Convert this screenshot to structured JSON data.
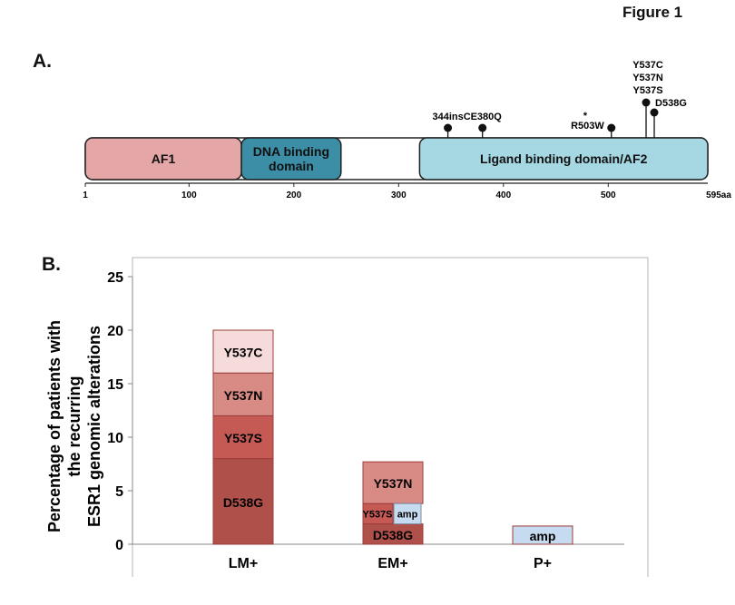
{
  "figure_title": "Figure 1",
  "panel_a_label": "A.",
  "panel_b_label": "B.",
  "protein": {
    "length": 595,
    "end_label": "595aa",
    "ticks": [
      {
        "pos": 1,
        "label": "1"
      },
      {
        "pos": 100,
        "label": "100"
      },
      {
        "pos": 200,
        "label": "200"
      },
      {
        "pos": 300,
        "label": "300"
      },
      {
        "pos": 400,
        "label": "400"
      },
      {
        "pos": 500,
        "label": "500"
      }
    ],
    "domains": [
      {
        "name": "AF1",
        "start": 1,
        "end": 150,
        "color": "#e4a6a6",
        "lines": [
          "AF1"
        ]
      },
      {
        "name": "DNA binding domain",
        "start": 150,
        "end": 245,
        "color": "#3b8ea5",
        "lines": [
          "DNA binding",
          "domain"
        ]
      },
      {
        "name": "Ligand binding domain/AF2",
        "start": 320,
        "end": 595,
        "color": "#a6d8e4",
        "lines": [
          "Ligand binding domain/AF2"
        ]
      }
    ],
    "mutations": [
      {
        "pos": 347,
        "label": "344insC"
      },
      {
        "pos": 380,
        "label": "E380Q"
      },
      {
        "pos": 503,
        "label": "R503W",
        "marker": "*"
      },
      {
        "pos": 537,
        "label": "Y537C"
      },
      {
        "pos": 537,
        "label": "Y537N"
      },
      {
        "pos": 537,
        "label": "Y537S"
      },
      {
        "pos": 538,
        "label": "D538G"
      }
    ]
  },
  "chart_data": {
    "type": "bar",
    "stacked": true,
    "title": "",
    "xlabel": "",
    "ylabel": "Percentage of patients with the recurring ESR1 genomic alterations",
    "ylabel_lines": [
      "Percentage of patients with",
      "the recurring",
      "ESR1 genomic alterations"
    ],
    "ylim": [
      0,
      25
    ],
    "yticks": [
      0,
      5,
      10,
      15,
      20,
      25
    ],
    "grid": false,
    "legend": "none",
    "categories": [
      "LM+",
      "EM+",
      "P+"
    ],
    "stacks": [
      [
        {
          "label": "D538G",
          "value": 8,
          "color": "#b0504a"
        },
        {
          "label": "Y537S",
          "value": 4,
          "color": "#c55a55"
        },
        {
          "label": "Y537N",
          "value": 4,
          "color": "#d88a85"
        },
        {
          "label": "Y537C",
          "value": 4,
          "color": "#f5dbd9"
        }
      ],
      [
        {
          "label": "D538G",
          "value": 1.9,
          "color": "#b0504a"
        },
        {
          "label": "Y537S",
          "value": 1.9,
          "color": "#c55a55",
          "small": true
        },
        {
          "label": "Y537N",
          "value": 3.9,
          "color": "#d88a85"
        }
      ],
      [
        {
          "label": "amp",
          "value": 1.7,
          "color": "#c6daf0"
        }
      ]
    ],
    "amp_em": {
      "label": "amp",
      "bottom": 1.9,
      "top": 3.8,
      "color": "#c6daf0"
    }
  }
}
